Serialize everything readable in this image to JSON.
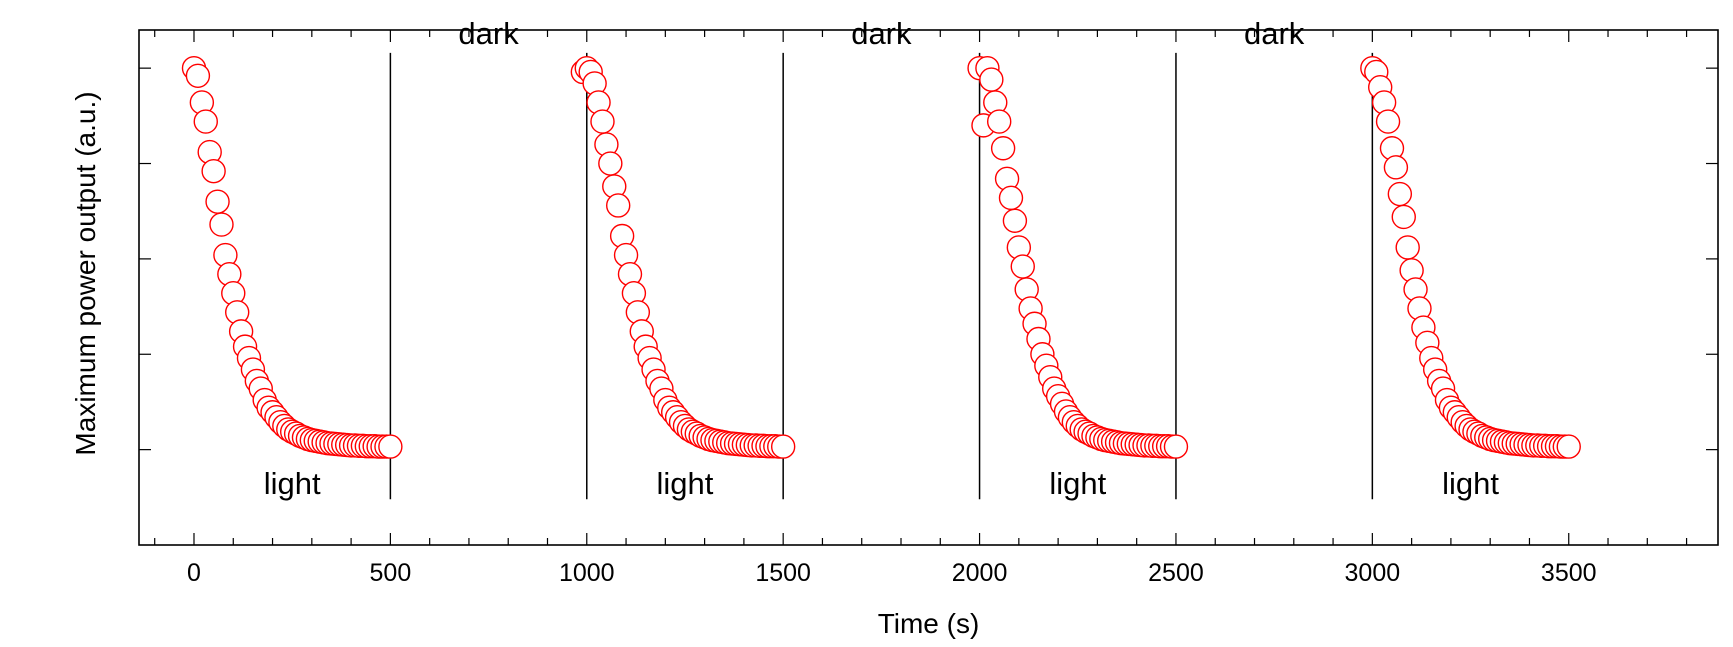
{
  "chart_data": {
    "type": "scatter",
    "xlabel": "Time (s)",
    "ylabel": "Maximum power output (a.u.)",
    "xlim": [
      -140,
      3880
    ],
    "ylim": [
      -0.25,
      1.1
    ],
    "xticks": [
      0,
      500,
      1000,
      1500,
      2000,
      2500,
      3000,
      3500
    ],
    "xtick_labels": [
      "0",
      "500",
      "1000",
      "1500",
      "2000",
      "2500",
      "3000",
      "3500"
    ],
    "yticks": [
      0.0,
      0.25,
      0.5,
      0.75,
      1.0
    ],
    "ytick_labels_visible": false,
    "grid": false,
    "legend": "none",
    "marker": "open-circle",
    "marker_color": "#ff0000",
    "line_color": "#000000",
    "phase_boundaries": [
      500,
      1000,
      1500,
      2000,
      2500,
      3000
    ],
    "phase_labels": [
      {
        "text": "light",
        "x": 250,
        "y": -0.09
      },
      {
        "text": "dark",
        "x": 750,
        "y": 1.09
      },
      {
        "text": "light",
        "x": 1250,
        "y": -0.09
      },
      {
        "text": "dark",
        "x": 1750,
        "y": 1.09
      },
      {
        "text": "light",
        "x": 2250,
        "y": -0.09
      },
      {
        "text": "dark",
        "x": 2750,
        "y": 1.09
      },
      {
        "text": "light",
        "x": 3250,
        "y": -0.09
      }
    ],
    "series": [
      {
        "x": [
          0,
          10,
          20,
          30,
          40,
          50,
          60,
          70,
          80,
          90,
          100,
          110,
          120,
          130,
          140,
          150,
          160,
          170,
          180,
          190,
          200,
          210,
          220,
          230,
          240,
          250,
          260,
          270,
          280,
          290,
          300,
          310,
          320,
          330,
          340,
          350,
          360,
          370,
          380,
          390,
          400,
          410,
          420,
          430,
          440,
          450,
          460,
          470,
          480,
          490,
          500
        ],
        "y": [
          1.0,
          0.98,
          0.91,
          0.86,
          0.78,
          0.73,
          0.65,
          0.59,
          0.51,
          0.46,
          0.41,
          0.36,
          0.31,
          0.27,
          0.24,
          0.21,
          0.18,
          0.16,
          0.13,
          0.11,
          0.098,
          0.085,
          0.072,
          0.062,
          0.053,
          0.047,
          0.042,
          0.036,
          0.032,
          0.028,
          0.025,
          0.023,
          0.021,
          0.019,
          0.017,
          0.016,
          0.015,
          0.014,
          0.013,
          0.012,
          0.011,
          0.011,
          0.01,
          0.01,
          0.009,
          0.009,
          0.009,
          0.008,
          0.008,
          0.008,
          0.008
        ]
      },
      {
        "x": [
          990,
          1000,
          1010,
          1020,
          1030,
          1040,
          1050,
          1060,
          1070,
          1080,
          1090,
          1100,
          1110,
          1120,
          1130,
          1140,
          1150,
          1160,
          1170,
          1180,
          1190,
          1200,
          1210,
          1220,
          1230,
          1240,
          1250,
          1260,
          1270,
          1280,
          1290,
          1300,
          1310,
          1320,
          1330,
          1340,
          1350,
          1360,
          1370,
          1380,
          1390,
          1400,
          1410,
          1420,
          1430,
          1440,
          1450,
          1460,
          1470,
          1480,
          1490,
          1500
        ],
        "y": [
          0.99,
          1.0,
          0.99,
          0.96,
          0.91,
          0.86,
          0.8,
          0.75,
          0.69,
          0.64,
          0.56,
          0.51,
          0.46,
          0.41,
          0.36,
          0.31,
          0.27,
          0.24,
          0.21,
          0.18,
          0.16,
          0.13,
          0.11,
          0.098,
          0.085,
          0.072,
          0.062,
          0.053,
          0.047,
          0.042,
          0.036,
          0.032,
          0.028,
          0.025,
          0.023,
          0.021,
          0.019,
          0.017,
          0.016,
          0.015,
          0.014,
          0.013,
          0.012,
          0.011,
          0.011,
          0.01,
          0.01,
          0.009,
          0.009,
          0.009,
          0.008,
          0.008
        ]
      },
      {
        "x": [
          2000,
          2010,
          2020,
          2030,
          2040,
          2050,
          2060,
          2070,
          2080,
          2090,
          2100,
          2110,
          2120,
          2130,
          2140,
          2150,
          2160,
          2170,
          2180,
          2190,
          2200,
          2210,
          2220,
          2230,
          2240,
          2250,
          2260,
          2270,
          2280,
          2290,
          2300,
          2310,
          2320,
          2330,
          2340,
          2350,
          2360,
          2370,
          2380,
          2390,
          2400,
          2410,
          2420,
          2430,
          2440,
          2450,
          2460,
          2470,
          2480,
          2490,
          2500
        ],
        "y": [
          1.0,
          0.85,
          1.0,
          0.97,
          0.91,
          0.86,
          0.79,
          0.71,
          0.66,
          0.6,
          0.53,
          0.48,
          0.42,
          0.37,
          0.33,
          0.29,
          0.25,
          0.22,
          0.19,
          0.16,
          0.14,
          0.12,
          0.1,
          0.085,
          0.072,
          0.062,
          0.053,
          0.047,
          0.042,
          0.036,
          0.032,
          0.028,
          0.025,
          0.023,
          0.021,
          0.019,
          0.017,
          0.016,
          0.015,
          0.014,
          0.013,
          0.012,
          0.011,
          0.011,
          0.01,
          0.01,
          0.009,
          0.009,
          0.009,
          0.008,
          0.008
        ]
      },
      {
        "x": [
          3000,
          3010,
          3020,
          3030,
          3040,
          3050,
          3060,
          3070,
          3080,
          3090,
          3100,
          3110,
          3120,
          3130,
          3140,
          3150,
          3160,
          3170,
          3180,
          3190,
          3200,
          3210,
          3220,
          3230,
          3240,
          3250,
          3260,
          3270,
          3280,
          3290,
          3300,
          3310,
          3320,
          3330,
          3340,
          3350,
          3360,
          3370,
          3380,
          3390,
          3400,
          3410,
          3420,
          3430,
          3440,
          3450,
          3460,
          3470,
          3480,
          3490,
          3500
        ],
        "y": [
          1.0,
          0.99,
          0.95,
          0.91,
          0.86,
          0.79,
          0.74,
          0.67,
          0.61,
          0.53,
          0.47,
          0.42,
          0.37,
          0.32,
          0.28,
          0.24,
          0.21,
          0.18,
          0.16,
          0.13,
          0.11,
          0.098,
          0.085,
          0.072,
          0.062,
          0.053,
          0.047,
          0.042,
          0.036,
          0.032,
          0.028,
          0.025,
          0.023,
          0.021,
          0.019,
          0.017,
          0.016,
          0.015,
          0.014,
          0.013,
          0.012,
          0.011,
          0.011,
          0.01,
          0.01,
          0.009,
          0.009,
          0.009,
          0.008,
          0.008,
          0.008
        ]
      }
    ]
  }
}
